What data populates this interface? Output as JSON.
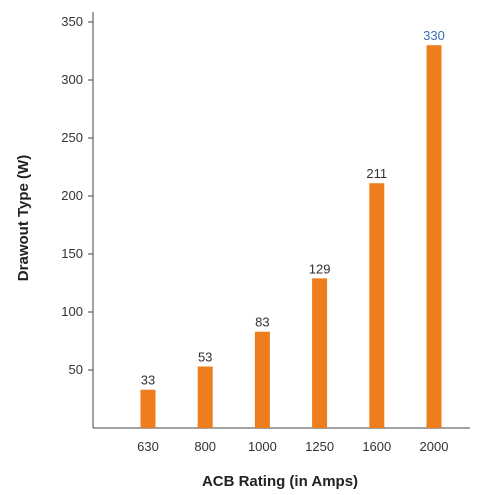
{
  "chart_data": {
    "type": "bar",
    "title": "",
    "xlabel": "ACB Rating (in Amps)",
    "ylabel": "Drawout Type (W)",
    "categories": [
      "630",
      "800",
      "1000",
      "1250",
      "1600",
      "2000"
    ],
    "values": [
      33,
      53,
      83,
      129,
      211,
      330
    ],
    "data_labels": [
      "33",
      "53",
      "83",
      "129",
      "211",
      "330"
    ],
    "ylim": [
      0,
      360
    ],
    "yticks": [
      50,
      100,
      150,
      200,
      250,
      300,
      350
    ],
    "ytick_labels": [
      "50",
      "100",
      "150",
      "200",
      "250",
      "300",
      "350"
    ],
    "grid": false,
    "legend": "none",
    "colors": {
      "bar": "#ee7d1d",
      "last_label": "#3a6fb5",
      "label": "#333333"
    }
  }
}
